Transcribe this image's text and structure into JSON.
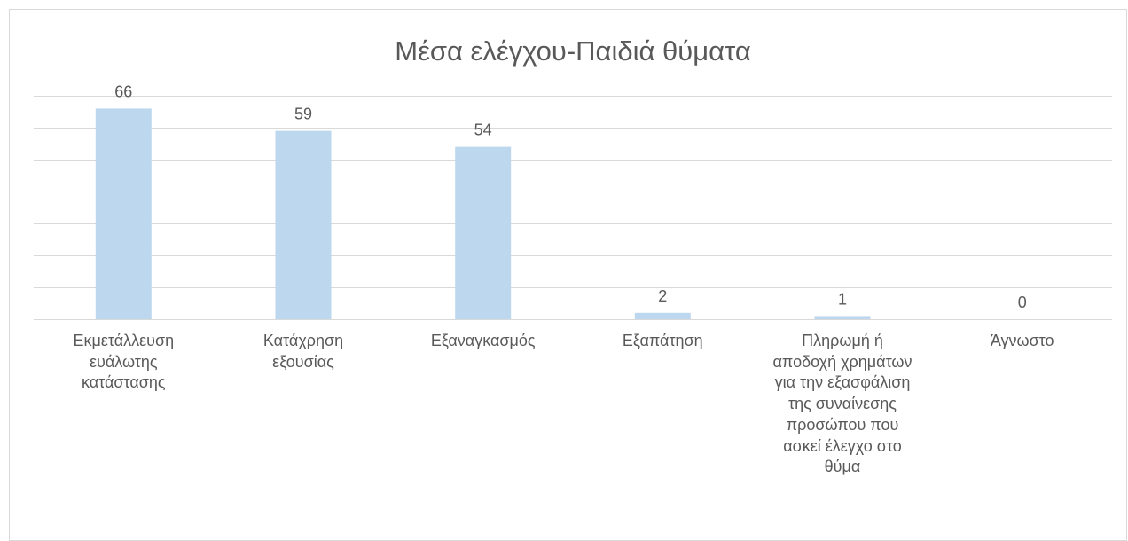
{
  "chart_data": {
    "type": "bar",
    "title": "Μέσα ελέγχου-Παιδιά θύματα",
    "categories": [
      "Εκμετάλλευση ευάλωτης κατάστασης",
      "Κατάχρηση εξουσίας",
      "Εξαναγκασμός",
      "Εξαπάτηση",
      "Πληρωμή ή αποδοχή χρημάτων για την εξασφάλιση της συναίνεσης προσώπου που ασκεί έλεγχο στο θύμα",
      "Άγνωστο"
    ],
    "category_lines": [
      "Εκμετάλλευση\nευάλωτης\nκατάστασης",
      "Κατάχρηση\nεξουσίας",
      "Εξαναγκασμός",
      "Εξαπάτηση",
      "Πληρωμή ή\nαποδοχή χρημάτων\nγια την εξασφάλιση\nτης συναίνεσης\nπροσώπου που\nασκεί έλεγχο στο\nθύμα",
      "Άγνωστο"
    ],
    "values": [
      66,
      59,
      54,
      2,
      1,
      0
    ],
    "data_labels": [
      "66",
      "59",
      "54",
      "2",
      "1",
      "0"
    ],
    "ylim": [
      0,
      70
    ],
    "gridlines": true,
    "xlabel": "",
    "ylabel": "",
    "legend": "none",
    "bar_color": "#bdd7ee",
    "grid_color": "#d9d9d9",
    "text_color": "#595959"
  }
}
